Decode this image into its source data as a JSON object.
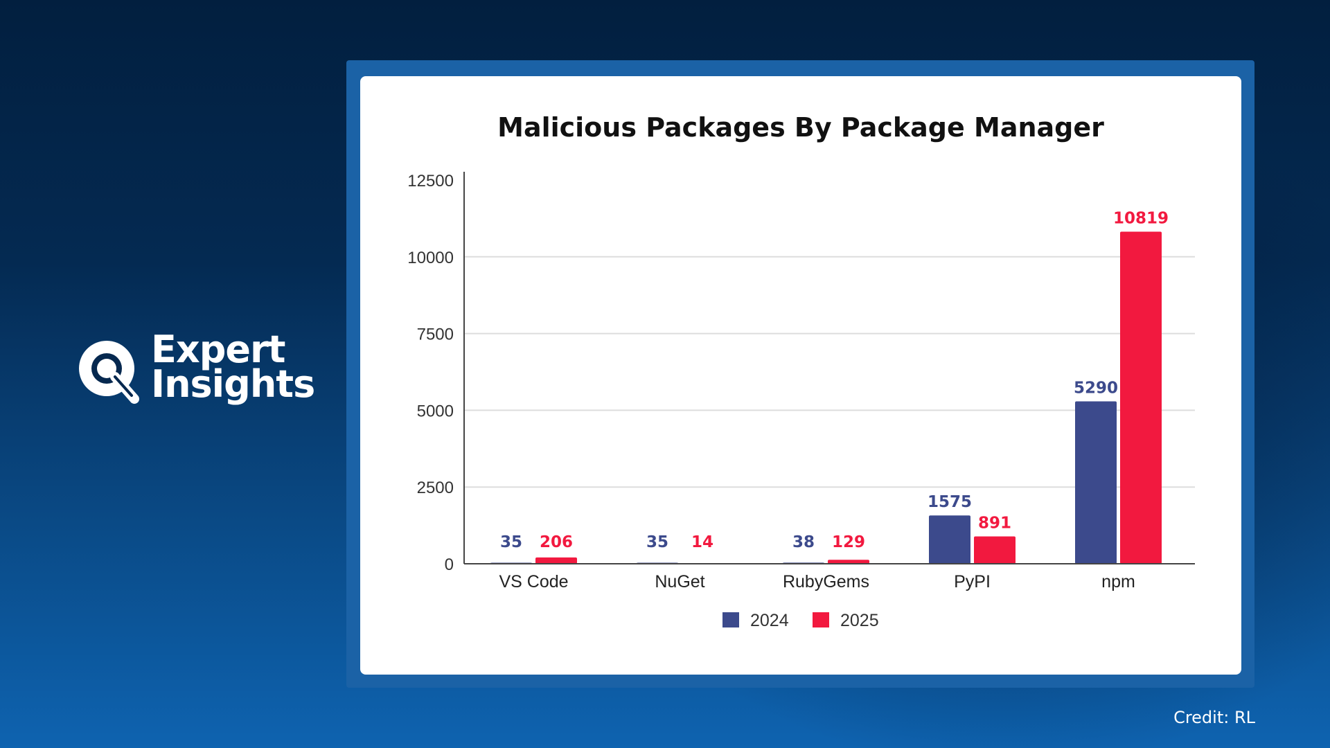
{
  "brand": {
    "line1": "Expert",
    "line2": "Insights",
    "logo_icon": "magnifier-q-icon"
  },
  "credit": "Credit: RL",
  "colors": {
    "series_2024": "#3c4a8c",
    "series_2025": "#f2193f",
    "grid": "#dddddd",
    "axis": "#444444"
  },
  "chart_data": {
    "type": "bar",
    "title": "Malicious Packages By Package Manager",
    "categories": [
      "VS Code",
      "NuGet",
      "RubyGems",
      "PyPI",
      "npm"
    ],
    "series": [
      {
        "name": "2024",
        "values": [
          35,
          35,
          38,
          1575,
          5290
        ]
      },
      {
        "name": "2025",
        "values": [
          206,
          14,
          129,
          891,
          10819
        ]
      }
    ],
    "ylim": [
      0,
      12500
    ],
    "yticks": [
      0,
      2500,
      5000,
      7500,
      10000,
      12500
    ],
    "grid": true,
    "legend": "bottom",
    "data_labels": true
  }
}
